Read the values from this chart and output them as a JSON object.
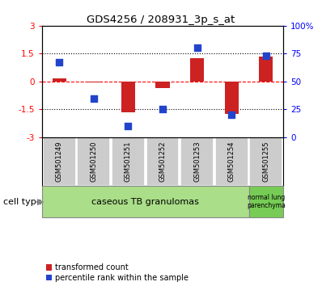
{
  "title": "GDS4256 / 208931_3p_s_at",
  "samples": [
    "GSM501249",
    "GSM501250",
    "GSM501251",
    "GSM501252",
    "GSM501253",
    "GSM501254",
    "GSM501255"
  ],
  "transformed_count": [
    0.15,
    -0.05,
    -1.65,
    -0.35,
    1.25,
    -1.75,
    1.35
  ],
  "percentile_rank": [
    67,
    35,
    10,
    25,
    80,
    20,
    73
  ],
  "ylim_left": [
    -3,
    3
  ],
  "ylim_right": [
    0,
    100
  ],
  "yticks_left": [
    -3,
    -1.5,
    0,
    1.5,
    3
  ],
  "ytick_labels_left": [
    "-3",
    "-1.5",
    "0",
    "1.5",
    "3"
  ],
  "yticks_right": [
    0,
    25,
    50,
    75,
    100
  ],
  "ytick_labels_right": [
    "0",
    "25",
    "50",
    "75",
    "100%"
  ],
  "bar_color": "#cc2222",
  "dot_color": "#2244cc",
  "group1_label": "caseous TB granulomas",
  "group2_label": "normal lung\nparenchyma",
  "group1_color": "#aade88",
  "group2_color": "#77cc55",
  "cell_type_label": "cell type",
  "legend1_label": "transformed count",
  "legend2_label": "percentile rank within the sample",
  "bar_width": 0.4,
  "dot_size": 40
}
